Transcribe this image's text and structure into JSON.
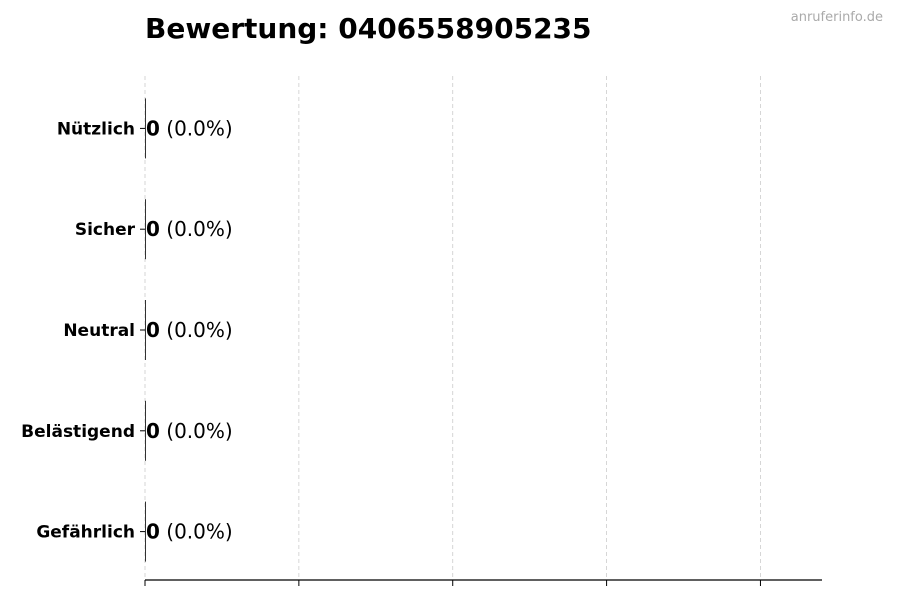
{
  "chart_data": {
    "type": "bar",
    "orientation": "horizontal",
    "title": "Bewertung: 0406558905235",
    "watermark": "anruferinfo.de",
    "categories": [
      "Nützlich",
      "Sicher",
      "Neutral",
      "Belästigend",
      "Gefährlich"
    ],
    "values": [
      0,
      0,
      0,
      0,
      0
    ],
    "labels": [
      {
        "count": "0",
        "pct": "(0.0%)"
      },
      {
        "count": "0",
        "pct": "(0.0%)"
      },
      {
        "count": "0",
        "pct": "(0.0%)"
      },
      {
        "count": "0",
        "pct": "(0.0%)"
      },
      {
        "count": "0",
        "pct": "(0.0%)"
      }
    ],
    "xlim": [
      0,
      4.4
    ],
    "xticks": [
      0,
      1,
      2,
      3,
      4
    ],
    "xtick_labels_shown": false,
    "grid": "x, dashed",
    "xlabel": "",
    "ylabel": "",
    "bar_color": "#000000",
    "grid_color": "#cccccc"
  }
}
